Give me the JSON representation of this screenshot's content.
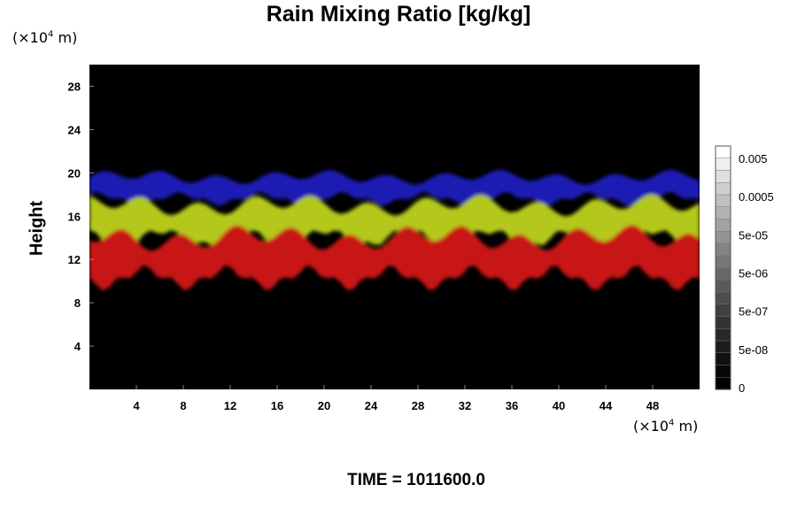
{
  "chart_data": {
    "type": "heatmap",
    "title": "Rain Mixing Ratio [kg/kg]",
    "xlabel": "",
    "ylabel": "Height",
    "x_unit": "(×10",
    "x_unit_exp": "4",
    "x_unit_tail": " m)",
    "y_unit": "(×10",
    "y_unit_exp": "4",
    "y_unit_tail": " m)",
    "xlim": [
      0,
      52
    ],
    "ylim": [
      0,
      30
    ],
    "xticks": [
      4,
      8,
      12,
      16,
      20,
      24,
      28,
      32,
      36,
      40,
      44,
      48
    ],
    "yticks": [
      4,
      8,
      12,
      16,
      20,
      24,
      28
    ],
    "background_color": "#000000",
    "grid": false,
    "layers": [
      {
        "color": "#1a1ab4",
        "y_bottom": 17.6,
        "y_top": 19.6
      },
      {
        "color": "#b4c81e",
        "y_bottom": 14.0,
        "y_top": 17.0
      },
      {
        "color": "#c81414",
        "y_bottom": 10.3,
        "y_top": 14.0
      }
    ],
    "colorbar": {
      "ticks": [
        "0.005",
        "0.0005",
        "5e-05",
        "5e-06",
        "5e-07",
        "5e-08",
        "0"
      ],
      "steps": 20,
      "color_top": "#ffffff",
      "color_bottom": "#000000"
    },
    "annotation": "TIME = 1011600.0"
  }
}
